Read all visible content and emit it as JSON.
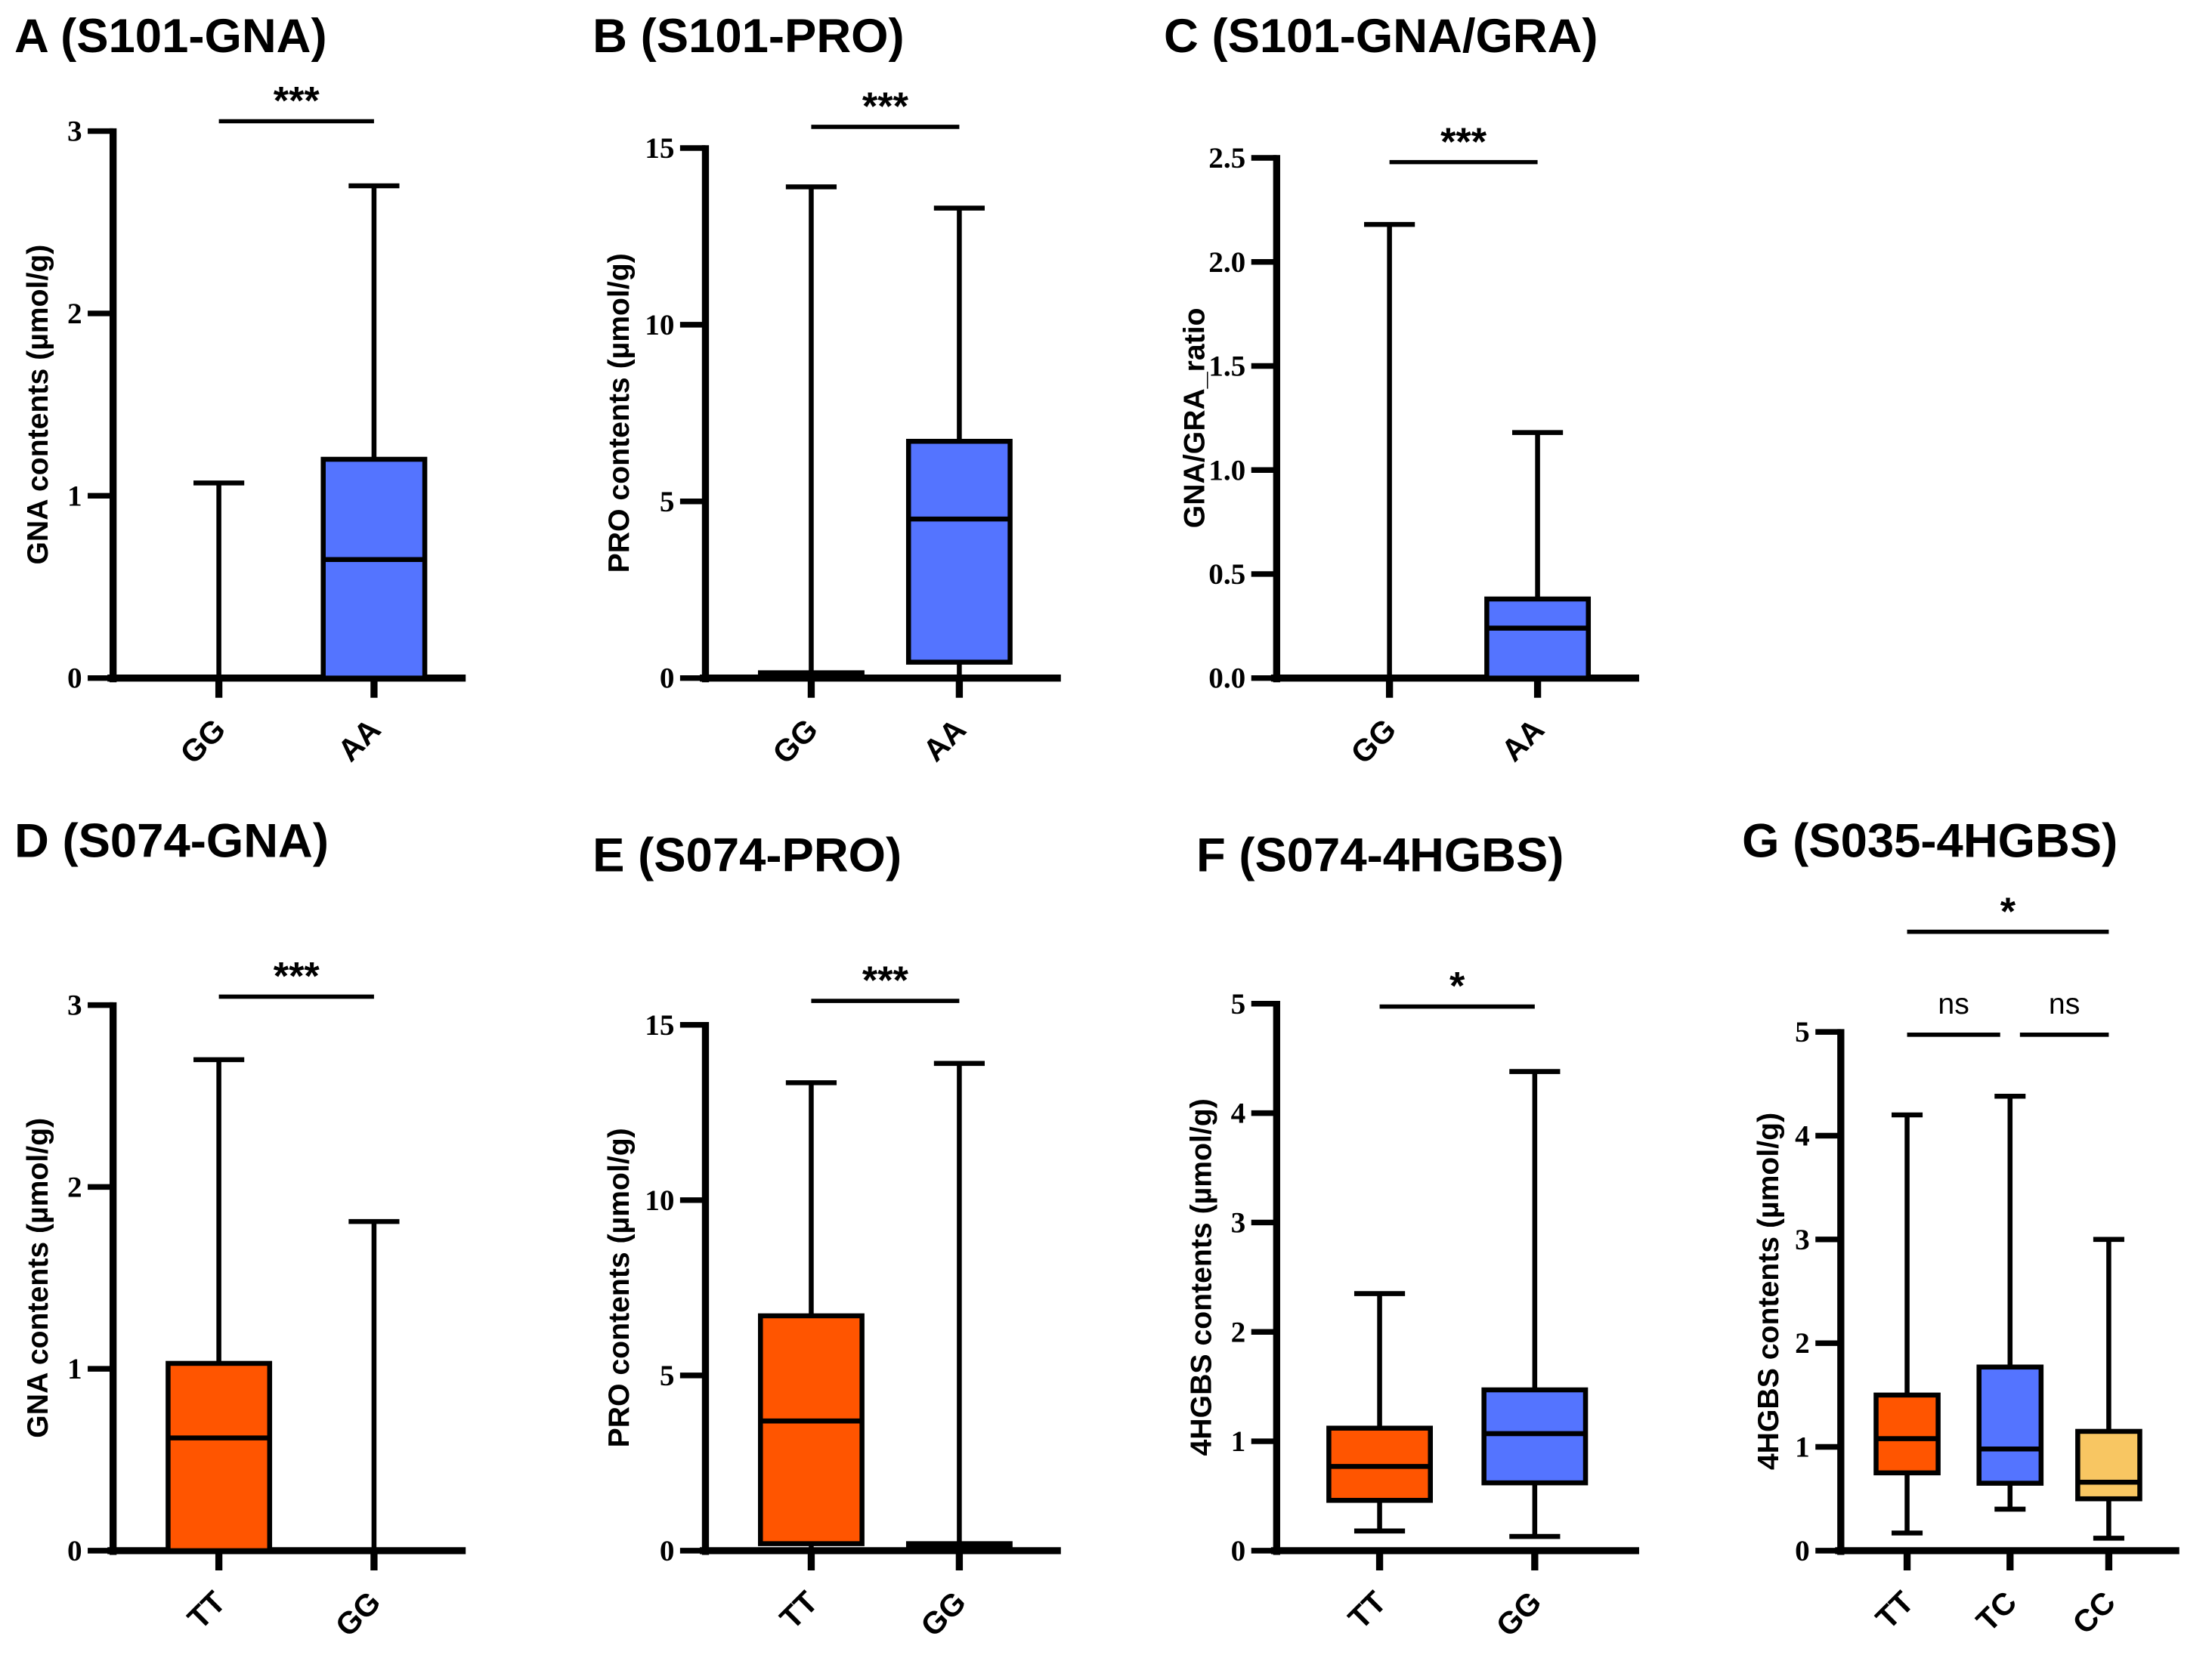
{
  "colors": {
    "blue": "#5474FF",
    "orange": "#FF5500",
    "yellow": "#F8C662"
  },
  "chart_data": [
    {
      "type": "box",
      "title": "A (S101-GNA)",
      "ylabel": "GNA contents (µmol/g)",
      "ylim": [
        0,
        3
      ],
      "ticks": [
        "0",
        "1",
        "2",
        "3"
      ],
      "tick_values": [
        0,
        1,
        2,
        3
      ],
      "categories": [
        "GG",
        "AA"
      ],
      "colors": [
        "blue",
        "blue"
      ],
      "boxes": [
        {
          "min": 0,
          "q1": 0,
          "median": 0,
          "q3": 0,
          "max": 1.07
        },
        {
          "min": 0,
          "q1": 0,
          "median": 0.65,
          "q3": 1.2,
          "max": 2.7
        }
      ],
      "significance": [
        {
          "from": 0,
          "to": 1,
          "label": "***"
        }
      ]
    },
    {
      "type": "box",
      "title": "B (S101-PRO)",
      "ylabel": "PRO contents (µmol/g)",
      "ylim": [
        0,
        15
      ],
      "ticks": [
        "0",
        "5",
        "10",
        "15"
      ],
      "tick_values": [
        0,
        5,
        10,
        15
      ],
      "categories": [
        "GG",
        "AA"
      ],
      "colors": [
        "blue",
        "blue"
      ],
      "boxes": [
        {
          "min": 0,
          "q1": 0,
          "median": 0.1,
          "q3": 0.15,
          "max": 13.9
        },
        {
          "min": 0,
          "q1": 0.45,
          "median": 4.5,
          "q3": 6.7,
          "max": 13.3
        }
      ],
      "significance": [
        {
          "from": 0,
          "to": 1,
          "label": "***"
        }
      ]
    },
    {
      "type": "box",
      "title": "C (S101-GNA/GRA)",
      "ylabel": "GNA/GRA_ratio",
      "ylim": [
        0,
        2.5
      ],
      "ticks": [
        "0.0",
        "0.5",
        "1.0",
        "1.5",
        "2.0",
        "2.5"
      ],
      "tick_values": [
        0,
        0.5,
        1,
        1.5,
        2,
        2.5
      ],
      "categories": [
        "GG",
        "AA"
      ],
      "colors": [
        "blue",
        "blue"
      ],
      "boxes": [
        {
          "min": 0,
          "q1": 0,
          "median": 0,
          "q3": 0,
          "max": 2.18
        },
        {
          "min": 0,
          "q1": 0,
          "median": 0.24,
          "q3": 0.38,
          "max": 1.18
        }
      ],
      "significance": [
        {
          "from": 0,
          "to": 1,
          "label": "***"
        }
      ]
    },
    {
      "type": "box",
      "title": "D (S074-GNA)",
      "ylabel": "GNA contents (µmol/g)",
      "ylim": [
        0,
        3
      ],
      "ticks": [
        "0",
        "1",
        "2",
        "3"
      ],
      "tick_values": [
        0,
        1,
        2,
        3
      ],
      "categories": [
        "TT",
        "GG"
      ],
      "colors": [
        "orange",
        "blue"
      ],
      "boxes": [
        {
          "min": 0,
          "q1": 0,
          "median": 0.62,
          "q3": 1.03,
          "max": 2.7
        },
        {
          "min": 0,
          "q1": 0,
          "median": 0,
          "q3": 0,
          "max": 1.81
        }
      ],
      "significance": [
        {
          "from": 0,
          "to": 1,
          "label": "***"
        }
      ]
    },
    {
      "type": "box",
      "title": "E (S074-PRO)",
      "ylabel": "PRO contents (µmol/g)",
      "ylim": [
        0,
        15
      ],
      "ticks": [
        "0",
        "5",
        "10",
        "15"
      ],
      "tick_values": [
        0,
        5,
        10,
        15
      ],
      "categories": [
        "TT",
        "GG"
      ],
      "colors": [
        "orange",
        "blue"
      ],
      "boxes": [
        {
          "min": 0,
          "q1": 0.2,
          "median": 3.7,
          "q3": 6.7,
          "max": 13.35
        },
        {
          "min": 0,
          "q1": 0,
          "median": 0.1,
          "q3": 0.2,
          "max": 13.9
        }
      ],
      "significance": [
        {
          "from": 0,
          "to": 1,
          "label": "***"
        }
      ]
    },
    {
      "type": "box",
      "title": "F (S074-4HGBS)",
      "ylabel": "4HGBS contents (µmol/g)",
      "ylim": [
        0,
        5
      ],
      "ticks": [
        "0",
        "1",
        "2",
        "3",
        "4",
        "5"
      ],
      "tick_values": [
        0,
        1,
        2,
        3,
        4,
        5
      ],
      "categories": [
        "TT",
        "GG"
      ],
      "colors": [
        "orange",
        "blue"
      ],
      "boxes": [
        {
          "min": 0.18,
          "q1": 0.46,
          "median": 0.77,
          "q3": 1.12,
          "max": 2.35
        },
        {
          "min": 0.13,
          "q1": 0.62,
          "median": 1.07,
          "q3": 1.47,
          "max": 4.38
        }
      ],
      "significance": [
        {
          "from": 0,
          "to": 1,
          "label": "*"
        }
      ]
    },
    {
      "type": "box",
      "title": "G (S035-4HGBS)",
      "ylabel": "4HGBS contents (µmol/g)",
      "ylim": [
        0,
        5
      ],
      "ticks": [
        "0",
        "1",
        "2",
        "3",
        "4",
        "5"
      ],
      "tick_values": [
        0,
        1,
        2,
        3,
        4,
        5
      ],
      "categories": [
        "TT",
        "TC",
        "CC"
      ],
      "colors": [
        "orange",
        "blue",
        "yellow"
      ],
      "boxes": [
        {
          "min": 0.17,
          "q1": 0.75,
          "median": 1.08,
          "q3": 1.5,
          "max": 4.2
        },
        {
          "min": 0.4,
          "q1": 0.65,
          "median": 0.98,
          "q3": 1.77,
          "max": 4.38
        },
        {
          "min": 0.12,
          "q1": 0.5,
          "median": 0.66,
          "q3": 1.15,
          "max": 3.0
        }
      ],
      "significance": [
        {
          "from": 0,
          "to": 1,
          "label": "ns"
        },
        {
          "from": 1,
          "to": 2,
          "label": "ns"
        },
        {
          "from": 0,
          "to": 2,
          "label": "*"
        }
      ]
    }
  ]
}
